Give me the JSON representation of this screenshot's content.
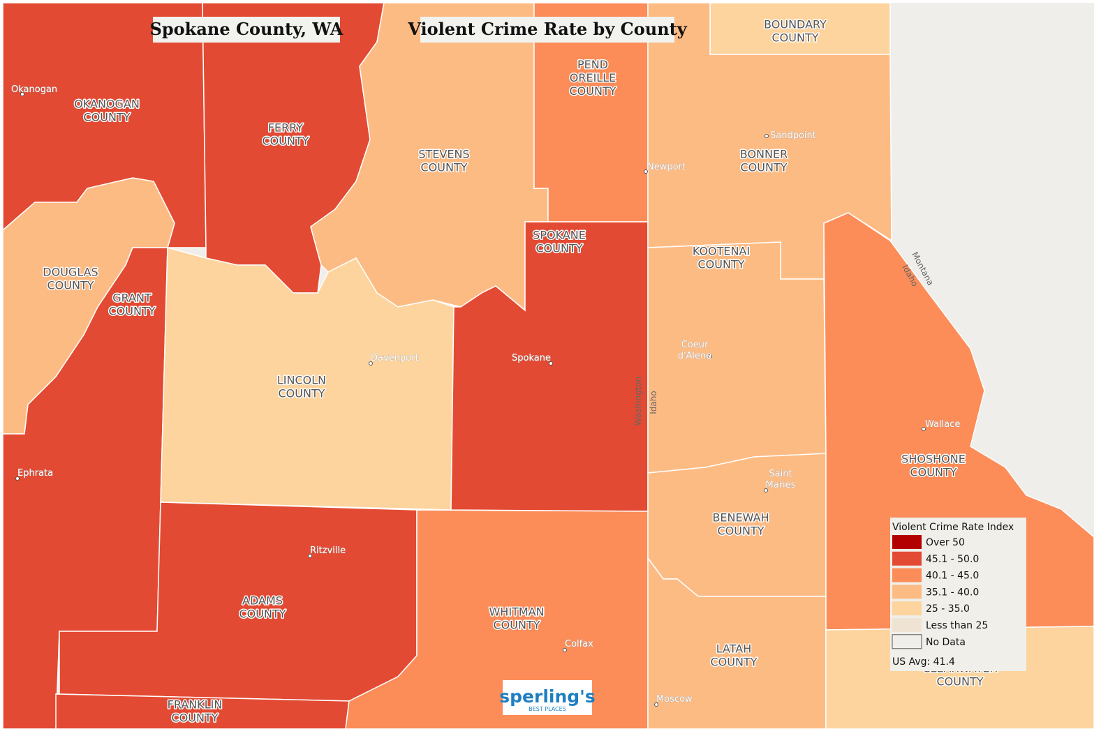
{
  "header": {
    "left_title": "Spokane County, WA",
    "right_title": "Violent Crime Rate by County"
  },
  "counties": [
    {
      "lines": [
        "OKANOGAN",
        "COUNTY"
      ],
      "color": "#e34a33"
    },
    {
      "lines": [
        "DOUGLAS",
        "COUNTY"
      ],
      "color": "#fdbb84"
    },
    {
      "lines": [
        "GRANT",
        "COUNTY"
      ],
      "color": "#e34a33"
    },
    {
      "lines": [
        "FERRY",
        "COUNTY"
      ],
      "color": "#e34a33"
    },
    {
      "lines": [
        "STEVENS",
        "COUNTY"
      ],
      "color": "#fdbb84"
    },
    {
      "lines": [
        "PEND",
        "OREILLE",
        "COUNTY"
      ],
      "color": "#fc8d59"
    },
    {
      "lines": [
        "LINCOLN",
        "COUNTY"
      ],
      "color": "#fdd49e"
    },
    {
      "lines": [
        "SPOKANE",
        "COUNTY"
      ],
      "color": "#e34a33"
    },
    {
      "lines": [
        "ADAMS",
        "COUNTY"
      ],
      "color": "#e34a33"
    },
    {
      "lines": [
        "FRANKLIN",
        "COUNTY"
      ],
      "color": "#e34a33"
    },
    {
      "lines": [
        "WHITMAN",
        "COUNTY"
      ],
      "color": "#fc8d59"
    },
    {
      "lines": [
        "BOUNDARY",
        "COUNTY"
      ],
      "color": "#fdd49e"
    },
    {
      "lines": [
        "BONNER",
        "COUNTY"
      ],
      "color": "#fdbb84"
    },
    {
      "lines": [
        "KOOTENAI",
        "COUNTY"
      ],
      "color": "#fdbb84"
    },
    {
      "lines": [
        "BENEWAH",
        "COUNTY"
      ],
      "color": "#fdbb84"
    },
    {
      "lines": [
        "LATAH",
        "COUNTY"
      ],
      "color": "#fdbb84"
    },
    {
      "lines": [
        "SHOSHONE",
        "COUNTY"
      ],
      "color": "#fc8d59"
    },
    {
      "lines": [
        "CLEARWATER",
        "COUNTY"
      ],
      "color": "#fdd49e"
    }
  ],
  "cities": [
    {
      "lines": [
        "Okanogan"
      ]
    },
    {
      "lines": [
        "Sandpoint"
      ]
    },
    {
      "lines": [
        "Newport"
      ]
    },
    {
      "lines": [
        "Davenport"
      ]
    },
    {
      "lines": [
        "Spokane"
      ]
    },
    {
      "lines": [
        "Coeur",
        "d'Alene"
      ]
    },
    {
      "lines": [
        "Wallace"
      ]
    },
    {
      "lines": [
        "Ephrata"
      ]
    },
    {
      "lines": [
        "Saint",
        "Maries"
      ]
    },
    {
      "lines": [
        "Ritzville"
      ]
    },
    {
      "lines": [
        "Colfax"
      ]
    },
    {
      "lines": [
        "Moscow"
      ]
    }
  ],
  "state_labels": [
    "Washington",
    "Idaho",
    "Montana",
    "Idaho"
  ],
  "legend": {
    "title": "Violent Crime Rate Index",
    "items": [
      {
        "label": "Over 50",
        "color": "#b30000"
      },
      {
        "label": "45.1 - 50.0",
        "color": "#e34a33"
      },
      {
        "label": "40.1 - 45.0",
        "color": "#fc8d59"
      },
      {
        "label": "35.1 - 40.0",
        "color": "#fdbb84"
      },
      {
        "label": "25 - 35.0",
        "color": "#fdd49e"
      },
      {
        "label": "Less than 25",
        "color": "#efe4d4"
      },
      {
        "label": "No Data",
        "color": "#efeeea"
      }
    ],
    "note": "US Avg: 41.4"
  },
  "logo": {
    "name": "sperling's",
    "tagline": "BEST PLACES"
  }
}
